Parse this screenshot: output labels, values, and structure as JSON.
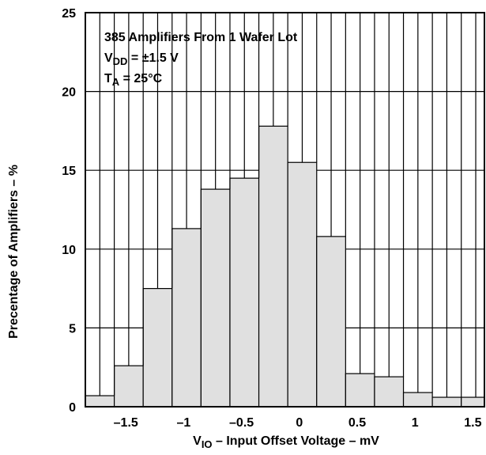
{
  "chart_data": {
    "type": "bar",
    "title": "",
    "xlabel": {
      "prefix": "V",
      "sub": "IO",
      "rest": " – Input Offset Voltage – mV"
    },
    "ylabel": "Precentage of Amplifiers – %",
    "xlim": [
      -1.85,
      1.6
    ],
    "ylim": [
      0,
      25
    ],
    "grid": true,
    "x_ticks": [
      -1.5,
      -1,
      -0.5,
      0,
      0.5,
      1,
      1.5
    ],
    "x_tick_labels": [
      "–1.5",
      "–1",
      "–0.5",
      "0",
      "0.5",
      "1",
      "1.5"
    ],
    "y_ticks": [
      0,
      5,
      10,
      15,
      20,
      25
    ],
    "y_tick_labels": [
      "0",
      "5",
      "10",
      "15",
      "20",
      "25"
    ],
    "bar_color": "#e0e0e0",
    "bins": [
      {
        "x0": -1.85,
        "x1": -1.6,
        "value": 0.7
      },
      {
        "x0": -1.6,
        "x1": -1.35,
        "value": 2.6
      },
      {
        "x0": -1.35,
        "x1": -1.1,
        "value": 7.5
      },
      {
        "x0": -1.1,
        "x1": -0.85,
        "value": 11.3
      },
      {
        "x0": -0.85,
        "x1": -0.6,
        "value": 13.8
      },
      {
        "x0": -0.6,
        "x1": -0.35,
        "value": 14.5
      },
      {
        "x0": -0.35,
        "x1": -0.1,
        "value": 17.8
      },
      {
        "x0": -0.1,
        "x1": 0.15,
        "value": 15.5
      },
      {
        "x0": 0.15,
        "x1": 0.4,
        "value": 10.8
      },
      {
        "x0": 0.4,
        "x1": 0.65,
        "value": 2.1
      },
      {
        "x0": 0.65,
        "x1": 0.9,
        "value": 1.9
      },
      {
        "x0": 0.9,
        "x1": 1.15,
        "value": 0.9
      },
      {
        "x0": 1.15,
        "x1": 1.4,
        "value": 0.6
      },
      {
        "x0": 1.4,
        "x1": 1.65,
        "value": 0.6
      }
    ],
    "annotations": [
      {
        "prefix": "385 Amplifiers From 1 Wafer Lot",
        "sub": "",
        "rest": ""
      },
      {
        "prefix": "V",
        "sub": "DD",
        "rest": " = ±1.5 V"
      },
      {
        "prefix": "T",
        "sub": "A",
        "rest": " = 25°C"
      }
    ]
  }
}
